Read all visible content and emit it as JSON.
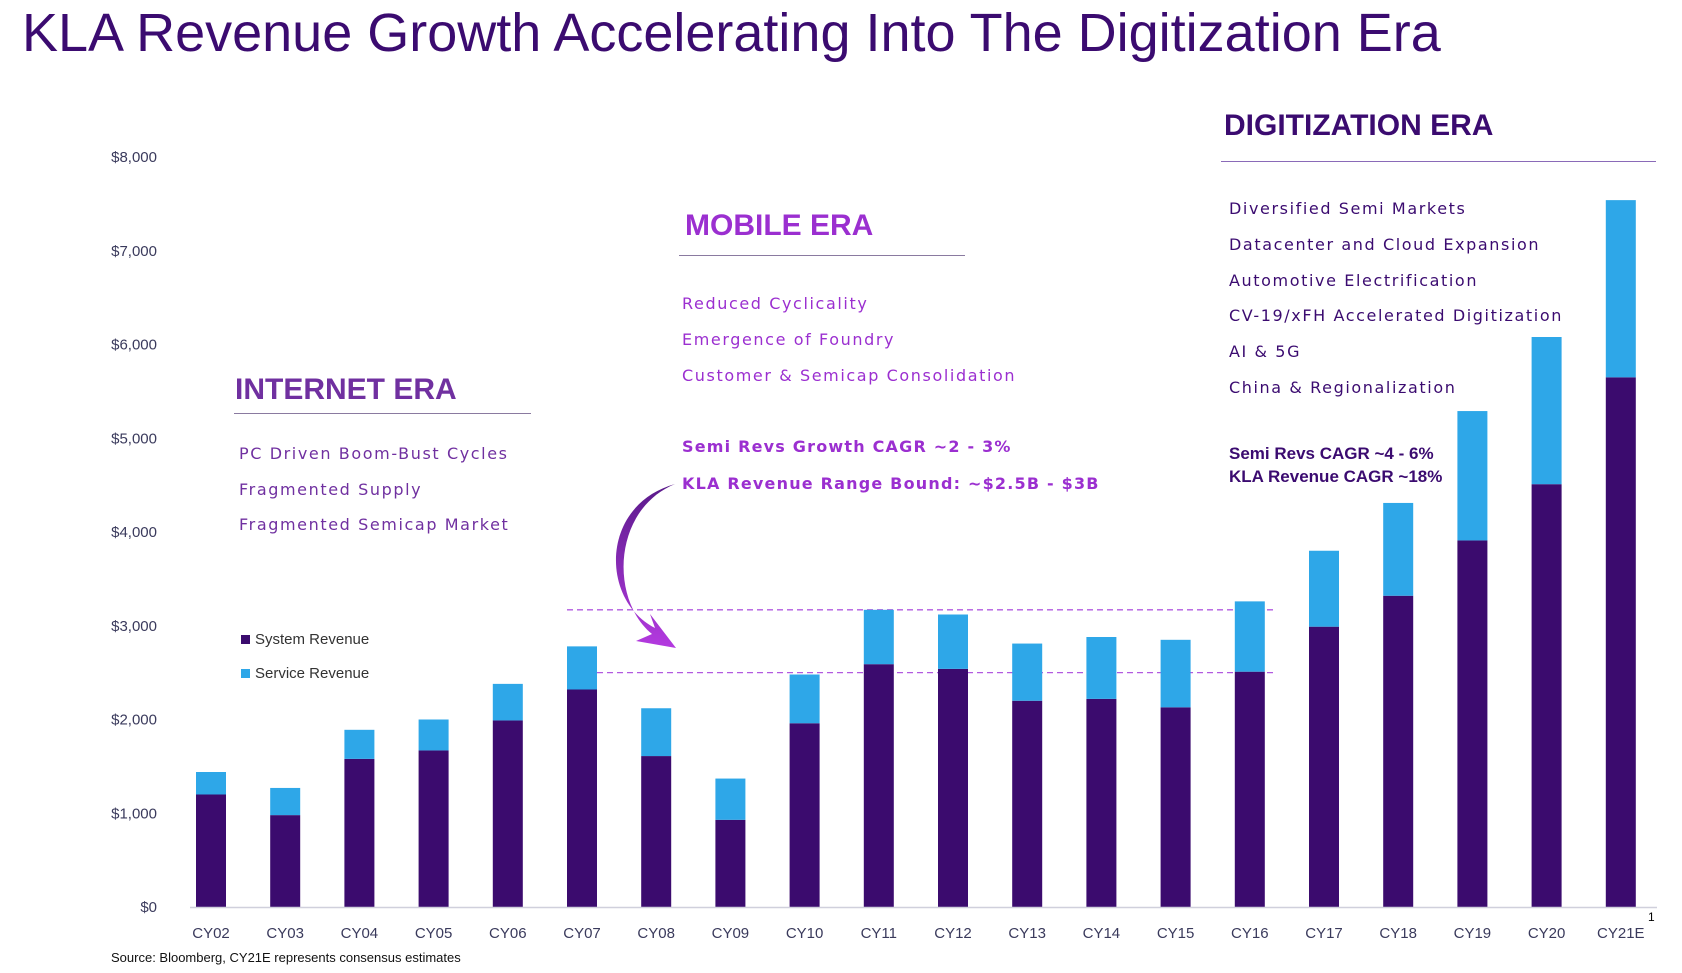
{
  "title": "KLA Revenue Growth Accelerating Into The Digitization Era",
  "colors": {
    "title": "#3b0b70",
    "system": "#3b0b6e",
    "service": "#2ea7e8",
    "internet": "#7030a0",
    "mobile": "#9b2fd0",
    "digitization": "#3b0b70",
    "dashed": "#b25ae0"
  },
  "eras": {
    "internet": {
      "heading": "INTERNET ERA",
      "items": [
        "PC Driven Boom-Bust Cycles",
        "Fragmented Supply",
        "Fragmented Semicap Market"
      ]
    },
    "mobile": {
      "heading": "MOBILE ERA",
      "items": [
        "Reduced Cyclicality",
        "Emergence of Foundry",
        "Customer & Semicap Consolidation"
      ],
      "highlights": [
        "Semi Revs Growth CAGR ~2 - 3%",
        "KLA Revenue Range Bound: ~$2.5B - $3B"
      ]
    },
    "digitization": {
      "heading": "DIGITIZATION ERA",
      "items": [
        "Diversified Semi Markets",
        "Datacenter and Cloud Expansion",
        "Automotive Electrification",
        "CV-19/xFH Accelerated Digitization",
        "AI & 5G",
        "China & Regionalization"
      ],
      "highlights": [
        "Semi Revs CAGR ~4 - 6%",
        "KLA Revenue CAGR ~18%"
      ]
    }
  },
  "source": "Source: Bloomberg, CY21E represents consensus estimates",
  "footnote": "1",
  "chart_data": {
    "type": "bar",
    "stacked": true,
    "categories": [
      "CY02",
      "CY03",
      "CY04",
      "CY05",
      "CY06",
      "CY07",
      "CY08",
      "CY09",
      "CY10",
      "CY11",
      "CY12",
      "CY13",
      "CY14",
      "CY15",
      "CY16",
      "CY17",
      "CY18",
      "CY19",
      "CY20",
      "CY21E"
    ],
    "series": [
      {
        "name": "System Revenue",
        "values": [
          1200,
          980,
          1580,
          1670,
          1990,
          2320,
          1610,
          930,
          1960,
          2590,
          2540,
          2200,
          2220,
          2130,
          2510,
          2990,
          3320,
          3910,
          4510,
          5650
        ]
      },
      {
        "name": "Service Revenue",
        "values": [
          240,
          290,
          310,
          330,
          390,
          460,
          510,
          440,
          520,
          580,
          580,
          610,
          660,
          720,
          750,
          810,
          990,
          1380,
          1570,
          1890
        ]
      }
    ],
    "ylim": [
      0,
      8000
    ],
    "yticks": [
      "$0",
      "$1,000",
      "$2,000",
      "$3,000",
      "$4,000",
      "$5,000",
      "$6,000",
      "$7,000",
      "$8,000"
    ],
    "reference_lines": [
      3170,
      2500
    ],
    "legend": "left",
    "grid": false
  }
}
